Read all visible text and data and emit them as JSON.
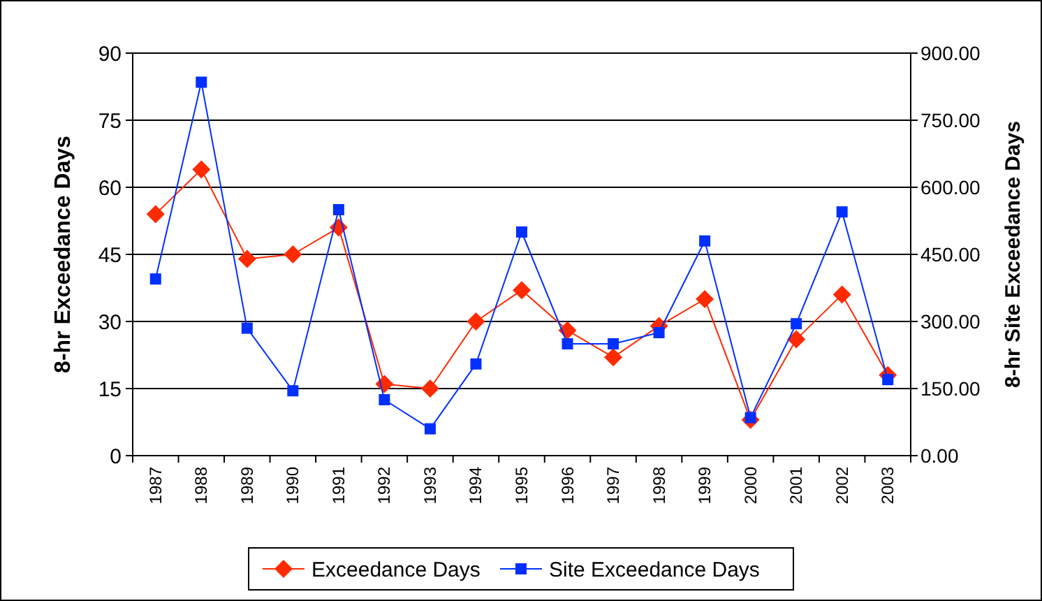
{
  "chart_data": {
    "type": "line",
    "ylabel": "8-hr Exceedance Days",
    "y2label": "8-hr Site Exceedance Days",
    "categories": [
      "1987",
      "1988",
      "1989",
      "1990",
      "1991",
      "1992",
      "1993",
      "1994",
      "1995",
      "1996",
      "1997",
      "1998",
      "1999",
      "2000",
      "2001",
      "2002",
      "2003"
    ],
    "series": [
      {
        "name": "Exceedance Days",
        "color": "#ff2a00",
        "marker": "diamond",
        "values": [
          54,
          64,
          44,
          45,
          51,
          16,
          15,
          30,
          37,
          28,
          22,
          29,
          35,
          8,
          26,
          36,
          18
        ]
      },
      {
        "name": "Site Exceedance Days",
        "color": "#0030ff",
        "marker": "square",
        "axis": "y2",
        "values": [
          395,
          835,
          285,
          145,
          550,
          125,
          60,
          205,
          500,
          250,
          250,
          275,
          480,
          85,
          295,
          545,
          170
        ]
      }
    ],
    "ylim": [
      0,
      90
    ],
    "yticks": [
      0,
      15,
      30,
      45,
      60,
      75,
      90
    ],
    "y2lim": [
      0,
      900
    ],
    "y2ticks": [
      {
        "value": 0,
        "label": "0.00"
      },
      {
        "value": 150,
        "label": "150.00"
      },
      {
        "value": 300,
        "label": "300.00"
      },
      {
        "value": 450,
        "label": "450.00"
      },
      {
        "value": 600,
        "label": "600.00"
      },
      {
        "value": 750,
        "label": "750.00"
      },
      {
        "value": 900,
        "label": "900.00"
      }
    ],
    "grid": "y",
    "legend": "bottom"
  }
}
